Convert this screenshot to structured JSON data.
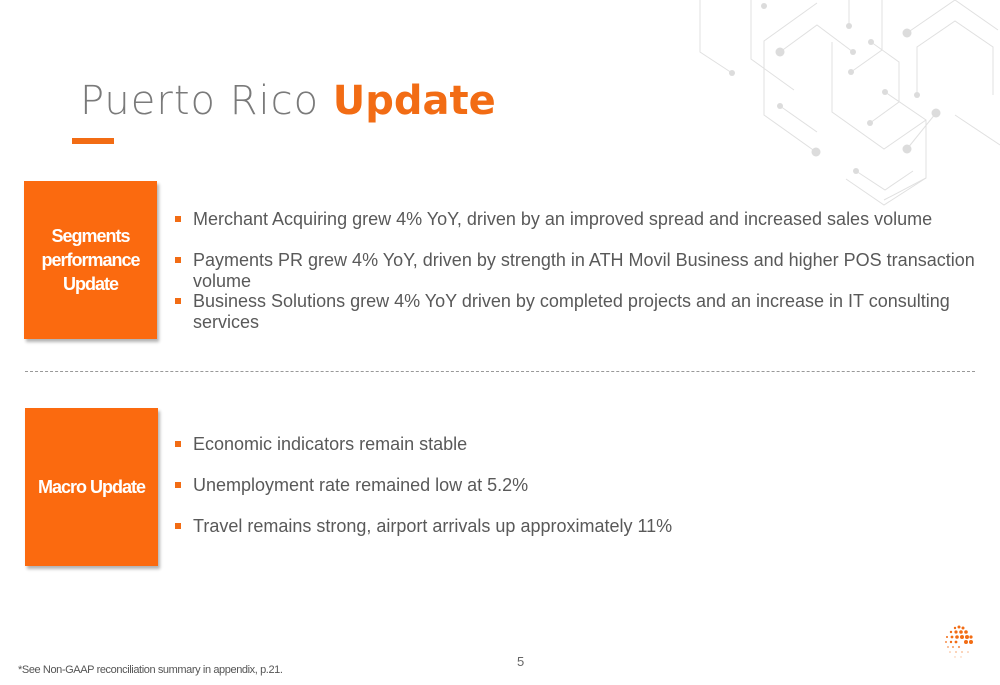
{
  "title": {
    "main": "Puerto Rico",
    "accent": "Update"
  },
  "sections": [
    {
      "label": "Segments performance Update",
      "bullets": [
        "Merchant Acquiring grew 4% YoY, driven by an improved spread and increased sales volume",
        "Payments PR grew 4% YoY, driven by strength in ATH Movil Business and higher POS transaction volume",
        "Business Solutions grew 4% YoY driven by completed projects and an increase in IT consulting services"
      ]
    },
    {
      "label": "Macro Update",
      "bullets": [
        "Economic indicators remain stable",
        "Unemployment rate remained low at 5.2%",
        "Travel remains strong, airport arrivals up approximately 11%"
      ]
    }
  ],
  "footer": {
    "note": "*See Non-GAAP reconciliation summary in appendix, p.21.",
    "page": "5"
  },
  "colors": {
    "accent": "#f26c14",
    "box": "#fb6a0f",
    "text": "#595959"
  },
  "icons": [
    "hexagon-network-decoration",
    "company-logo-icon"
  ]
}
